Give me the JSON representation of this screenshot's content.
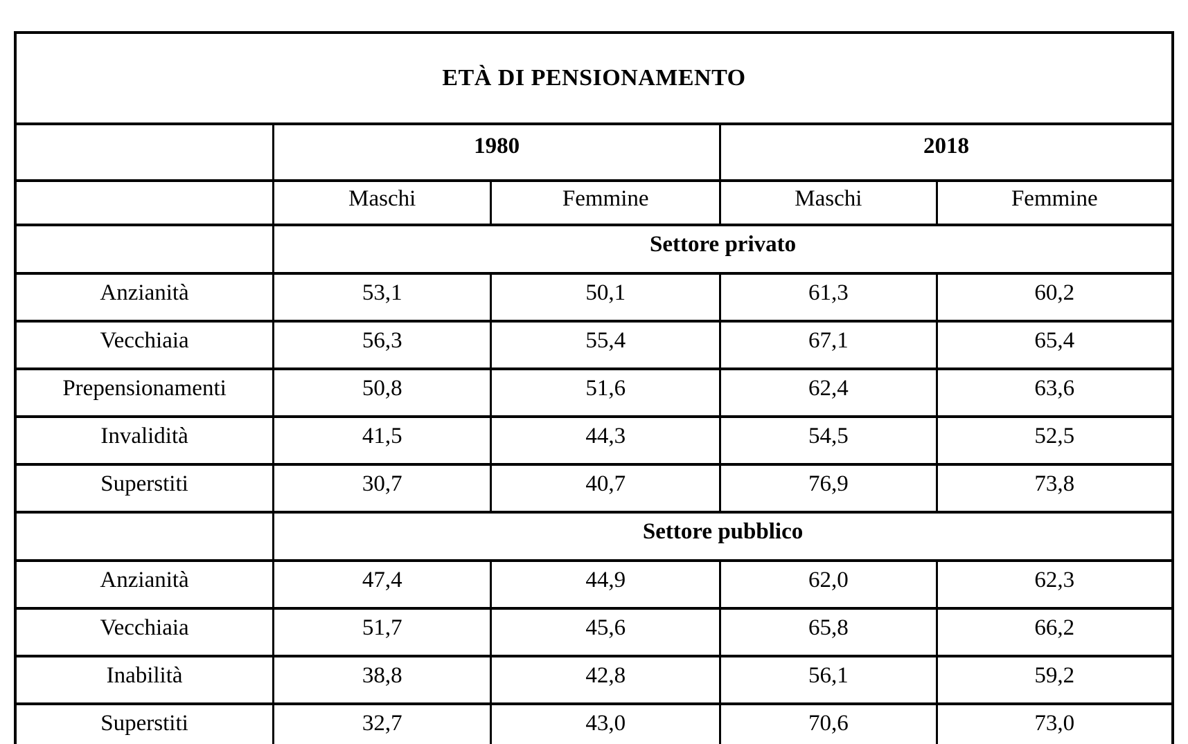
{
  "page": {
    "background_color": "#ffffff",
    "border_color": "#000000",
    "text_color": "#000000"
  },
  "table": {
    "title": "ETÀ DI PENSIONAMENTO",
    "year_headers": [
      "1980",
      "2018"
    ],
    "gender_headers": [
      "Maschi",
      "Femmine",
      "Maschi",
      "Femmine"
    ],
    "sections": [
      {
        "label": "Settore privato",
        "rows": [
          {
            "label": "Anzianità",
            "values": [
              "53,1",
              "50,1",
              "61,3",
              "60,2"
            ]
          },
          {
            "label": "Vecchiaia",
            "values": [
              "56,3",
              "55,4",
              "67,1",
              "65,4"
            ]
          },
          {
            "label": "Prepensionamenti",
            "values": [
              "50,8",
              "51,6",
              "62,4",
              "63,6"
            ]
          },
          {
            "label": "Invalidità",
            "values": [
              "41,5",
              "44,3",
              "54,5",
              "52,5"
            ]
          },
          {
            "label": "Superstiti",
            "values": [
              "30,7",
              "40,7",
              "76,9",
              "73,8"
            ]
          }
        ]
      },
      {
        "label": "Settore pubblico",
        "rows": [
          {
            "label": "Anzianità",
            "values": [
              "47,4",
              "44,9",
              "62,0",
              "62,3"
            ]
          },
          {
            "label": "Vecchiaia",
            "values": [
              "51,7",
              "45,6",
              "65,8",
              "66,2"
            ]
          },
          {
            "label": "Inabilità",
            "values": [
              "38,8",
              "42,8",
              "56,1",
              "59,2"
            ]
          },
          {
            "label": "Superstiti",
            "values": [
              "32,7",
              "43,0",
              "70,6",
              "73,0"
            ]
          }
        ]
      }
    ]
  },
  "chart_data": {
    "type": "table",
    "title": "ETÀ DI PENSIONAMENTO",
    "column_groups": [
      "1980",
      "2018"
    ],
    "columns": [
      "1980 Maschi",
      "1980 Femmine",
      "2018 Maschi",
      "2018 Femmine"
    ],
    "decimal_separator_displayed": ",",
    "sections": [
      {
        "name": "Settore privato",
        "rows": [
          {
            "category": "Anzianità",
            "values": [
              53.1,
              50.1,
              61.3,
              60.2
            ]
          },
          {
            "category": "Vecchiaia",
            "values": [
              56.3,
              55.4,
              67.1,
              65.4
            ]
          },
          {
            "category": "Prepensionamenti",
            "values": [
              50.8,
              51.6,
              62.4,
              63.6
            ]
          },
          {
            "category": "Invalidità",
            "values": [
              41.5,
              44.3,
              54.5,
              52.5
            ]
          },
          {
            "category": "Superstiti",
            "values": [
              30.7,
              40.7,
              76.9,
              73.8
            ]
          }
        ]
      },
      {
        "name": "Settore pubblico",
        "rows": [
          {
            "category": "Anzianità",
            "values": [
              47.4,
              44.9,
              62.0,
              62.3
            ]
          },
          {
            "category": "Vecchiaia",
            "values": [
              51.7,
              45.6,
              65.8,
              66.2
            ]
          },
          {
            "category": "Inabilità",
            "values": [
              38.8,
              42.8,
              56.1,
              59.2
            ]
          },
          {
            "category": "Superstiti",
            "values": [
              32.7,
              43.0,
              70.6,
              73.0
            ]
          }
        ]
      }
    ]
  }
}
